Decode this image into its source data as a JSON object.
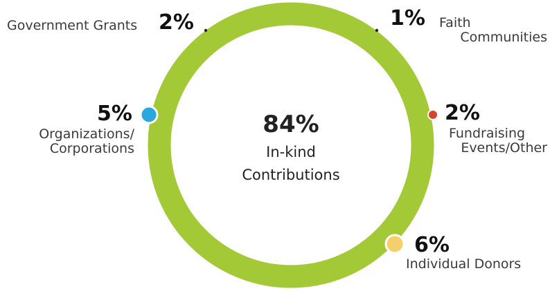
{
  "chart_data": {
    "type": "pie",
    "categories": [
      "In-kind Contributions",
      "Organizations/ Corporations",
      "Government Grants",
      "Faith Communities",
      "Fundraising Events/Other",
      "Individual Donors"
    ],
    "values": [
      84,
      5,
      2,
      1,
      2,
      6
    ],
    "value_labels": [
      "84%",
      "5%",
      "2%",
      "1%",
      "2%",
      "6%"
    ],
    "label_lines": {
      "in_kind": [
        "In-kind",
        "Contributions"
      ],
      "organizations": [
        "Organizations/",
        "Corporations"
      ],
      "government": [
        "Government Grants"
      ],
      "faith": [
        "Faith",
        "Communities"
      ],
      "fundraising": [
        "Fundraising",
        "Events/Other"
      ],
      "individual": [
        "Individual Donors"
      ]
    },
    "style": "donut ring with marker dots",
    "colors": {
      "ring": "#a3c937",
      "organizations": "#29a8e0",
      "fundraising": "#d2462e",
      "individual": "#f5d06a",
      "small_marker": "#222222",
      "marker_border": "#ffffff"
    }
  }
}
